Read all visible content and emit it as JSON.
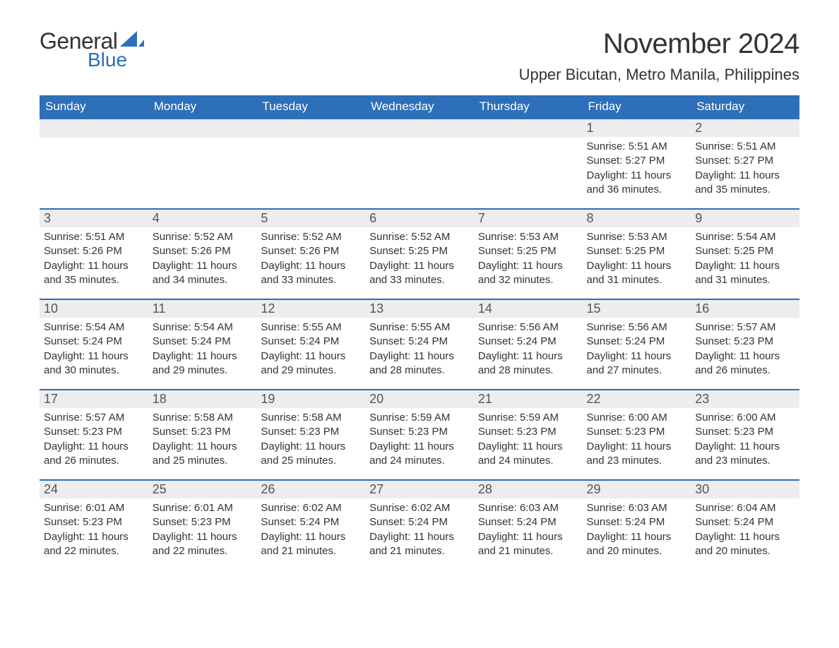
{
  "brand": {
    "word1": "General",
    "word2": "Blue",
    "sail_color": "#2d6fb8",
    "text_color_general": "#333333",
    "text_color_blue": "#2d6fb8"
  },
  "title": "November 2024",
  "location": "Upper Bicutan, Metro Manila, Philippines",
  "colors": {
    "header_bg": "#2d6fb8",
    "header_fg": "#ffffff",
    "row_border": "#2d6fb8",
    "daynum_bg": "#ededed",
    "text": "#333333",
    "background": "#ffffff"
  },
  "typography": {
    "title_fontsize": 40,
    "location_fontsize": 22,
    "header_fontsize": 17,
    "daynum_fontsize": 18,
    "body_fontsize": 15
  },
  "weekdays": [
    "Sunday",
    "Monday",
    "Tuesday",
    "Wednesday",
    "Thursday",
    "Friday",
    "Saturday"
  ],
  "weeks": [
    [
      {
        "empty": true
      },
      {
        "empty": true
      },
      {
        "empty": true
      },
      {
        "empty": true
      },
      {
        "empty": true
      },
      {
        "day": "1",
        "sunrise": "Sunrise: 5:51 AM",
        "sunset": "Sunset: 5:27 PM",
        "daylight": "Daylight: 11 hours and 36 minutes."
      },
      {
        "day": "2",
        "sunrise": "Sunrise: 5:51 AM",
        "sunset": "Sunset: 5:27 PM",
        "daylight": "Daylight: 11 hours and 35 minutes."
      }
    ],
    [
      {
        "day": "3",
        "sunrise": "Sunrise: 5:51 AM",
        "sunset": "Sunset: 5:26 PM",
        "daylight": "Daylight: 11 hours and 35 minutes."
      },
      {
        "day": "4",
        "sunrise": "Sunrise: 5:52 AM",
        "sunset": "Sunset: 5:26 PM",
        "daylight": "Daylight: 11 hours and 34 minutes."
      },
      {
        "day": "5",
        "sunrise": "Sunrise: 5:52 AM",
        "sunset": "Sunset: 5:26 PM",
        "daylight": "Daylight: 11 hours and 33 minutes."
      },
      {
        "day": "6",
        "sunrise": "Sunrise: 5:52 AM",
        "sunset": "Sunset: 5:25 PM",
        "daylight": "Daylight: 11 hours and 33 minutes."
      },
      {
        "day": "7",
        "sunrise": "Sunrise: 5:53 AM",
        "sunset": "Sunset: 5:25 PM",
        "daylight": "Daylight: 11 hours and 32 minutes."
      },
      {
        "day": "8",
        "sunrise": "Sunrise: 5:53 AM",
        "sunset": "Sunset: 5:25 PM",
        "daylight": "Daylight: 11 hours and 31 minutes."
      },
      {
        "day": "9",
        "sunrise": "Sunrise: 5:54 AM",
        "sunset": "Sunset: 5:25 PM",
        "daylight": "Daylight: 11 hours and 31 minutes."
      }
    ],
    [
      {
        "day": "10",
        "sunrise": "Sunrise: 5:54 AM",
        "sunset": "Sunset: 5:24 PM",
        "daylight": "Daylight: 11 hours and 30 minutes."
      },
      {
        "day": "11",
        "sunrise": "Sunrise: 5:54 AM",
        "sunset": "Sunset: 5:24 PM",
        "daylight": "Daylight: 11 hours and 29 minutes."
      },
      {
        "day": "12",
        "sunrise": "Sunrise: 5:55 AM",
        "sunset": "Sunset: 5:24 PM",
        "daylight": "Daylight: 11 hours and 29 minutes."
      },
      {
        "day": "13",
        "sunrise": "Sunrise: 5:55 AM",
        "sunset": "Sunset: 5:24 PM",
        "daylight": "Daylight: 11 hours and 28 minutes."
      },
      {
        "day": "14",
        "sunrise": "Sunrise: 5:56 AM",
        "sunset": "Sunset: 5:24 PM",
        "daylight": "Daylight: 11 hours and 28 minutes."
      },
      {
        "day": "15",
        "sunrise": "Sunrise: 5:56 AM",
        "sunset": "Sunset: 5:24 PM",
        "daylight": "Daylight: 11 hours and 27 minutes."
      },
      {
        "day": "16",
        "sunrise": "Sunrise: 5:57 AM",
        "sunset": "Sunset: 5:23 PM",
        "daylight": "Daylight: 11 hours and 26 minutes."
      }
    ],
    [
      {
        "day": "17",
        "sunrise": "Sunrise: 5:57 AM",
        "sunset": "Sunset: 5:23 PM",
        "daylight": "Daylight: 11 hours and 26 minutes."
      },
      {
        "day": "18",
        "sunrise": "Sunrise: 5:58 AM",
        "sunset": "Sunset: 5:23 PM",
        "daylight": "Daylight: 11 hours and 25 minutes."
      },
      {
        "day": "19",
        "sunrise": "Sunrise: 5:58 AM",
        "sunset": "Sunset: 5:23 PM",
        "daylight": "Daylight: 11 hours and 25 minutes."
      },
      {
        "day": "20",
        "sunrise": "Sunrise: 5:59 AM",
        "sunset": "Sunset: 5:23 PM",
        "daylight": "Daylight: 11 hours and 24 minutes."
      },
      {
        "day": "21",
        "sunrise": "Sunrise: 5:59 AM",
        "sunset": "Sunset: 5:23 PM",
        "daylight": "Daylight: 11 hours and 24 minutes."
      },
      {
        "day": "22",
        "sunrise": "Sunrise: 6:00 AM",
        "sunset": "Sunset: 5:23 PM",
        "daylight": "Daylight: 11 hours and 23 minutes."
      },
      {
        "day": "23",
        "sunrise": "Sunrise: 6:00 AM",
        "sunset": "Sunset: 5:23 PM",
        "daylight": "Daylight: 11 hours and 23 minutes."
      }
    ],
    [
      {
        "day": "24",
        "sunrise": "Sunrise: 6:01 AM",
        "sunset": "Sunset: 5:23 PM",
        "daylight": "Daylight: 11 hours and 22 minutes."
      },
      {
        "day": "25",
        "sunrise": "Sunrise: 6:01 AM",
        "sunset": "Sunset: 5:23 PM",
        "daylight": "Daylight: 11 hours and 22 minutes."
      },
      {
        "day": "26",
        "sunrise": "Sunrise: 6:02 AM",
        "sunset": "Sunset: 5:24 PM",
        "daylight": "Daylight: 11 hours and 21 minutes."
      },
      {
        "day": "27",
        "sunrise": "Sunrise: 6:02 AM",
        "sunset": "Sunset: 5:24 PM",
        "daylight": "Daylight: 11 hours and 21 minutes."
      },
      {
        "day": "28",
        "sunrise": "Sunrise: 6:03 AM",
        "sunset": "Sunset: 5:24 PM",
        "daylight": "Daylight: 11 hours and 21 minutes."
      },
      {
        "day": "29",
        "sunrise": "Sunrise: 6:03 AM",
        "sunset": "Sunset: 5:24 PM",
        "daylight": "Daylight: 11 hours and 20 minutes."
      },
      {
        "day": "30",
        "sunrise": "Sunrise: 6:04 AM",
        "sunset": "Sunset: 5:24 PM",
        "daylight": "Daylight: 11 hours and 20 minutes."
      }
    ]
  ]
}
